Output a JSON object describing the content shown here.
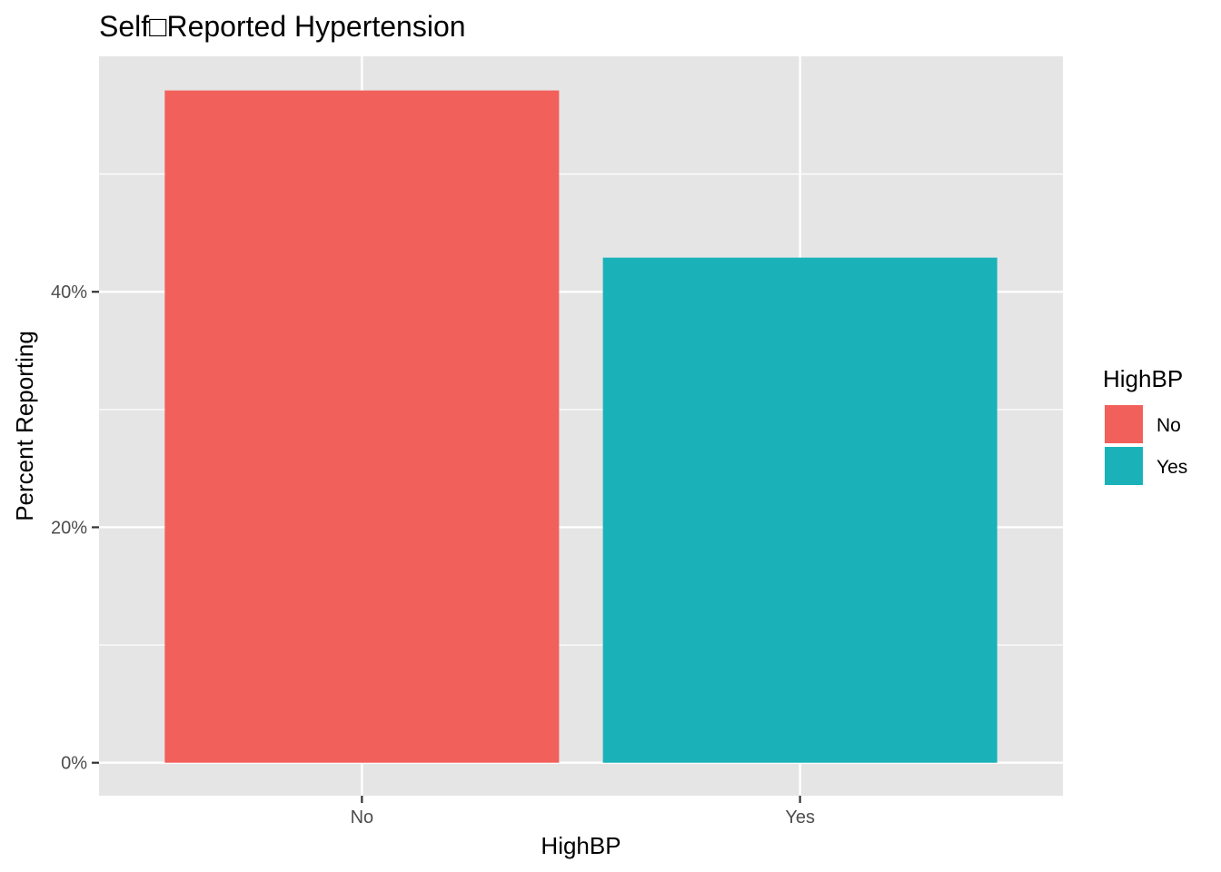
{
  "chart_data": {
    "type": "bar",
    "title": "Self□Reported Hypertension",
    "xlabel": "HighBP",
    "ylabel": "Percent Reporting",
    "categories": [
      "No",
      "Yes"
    ],
    "values": [
      57.1,
      42.9
    ],
    "ylim": [
      -2.8,
      60
    ],
    "y_ticks": [
      0,
      20,
      40
    ],
    "y_tick_labels": [
      "0%",
      "20%",
      "40%"
    ],
    "grid": true,
    "legend": {
      "title": "HighBP",
      "placement": "right",
      "entries": [
        "No",
        "Yes"
      ]
    },
    "colors": {
      "No": "#F2605B",
      "Yes": "#1AB2B8",
      "panel": "#E5E5E5",
      "grid": "#FFFFFF"
    }
  }
}
